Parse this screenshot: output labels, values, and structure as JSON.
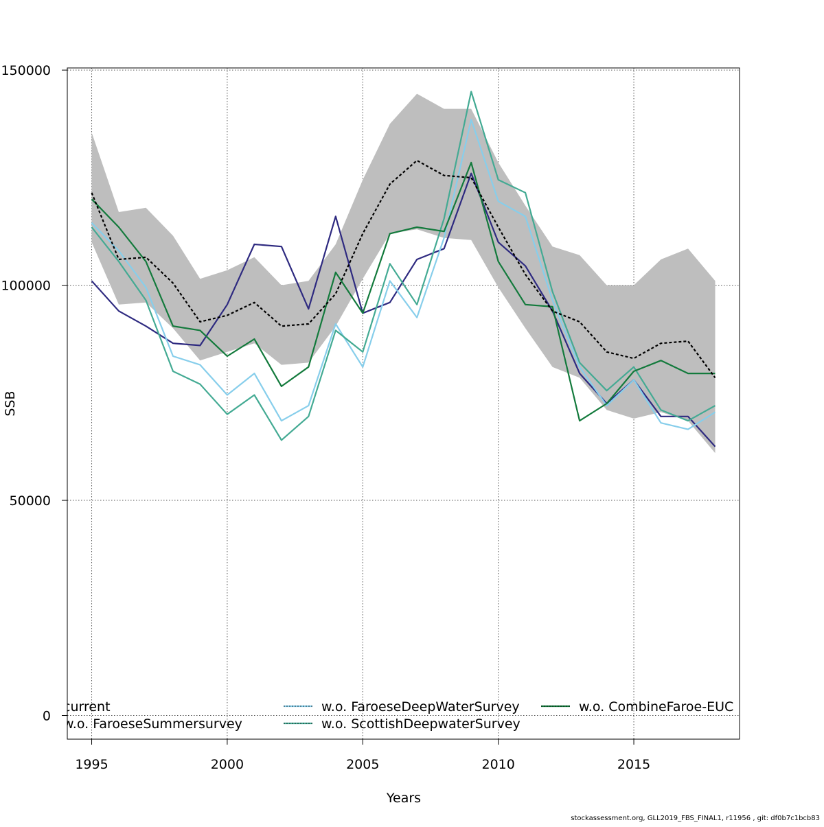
{
  "chart_data": {
    "type": "line",
    "xlabel": "Years",
    "ylabel": "SSB",
    "xlim": [
      1994.1,
      2018.9
    ],
    "ylim": [
      -5500,
      150500
    ],
    "x_ticks": [
      1995,
      2000,
      2005,
      2010,
      2015
    ],
    "y_ticks": [
      0,
      50000,
      100000,
      150000
    ],
    "grid": true,
    "legend_position": "bottom",
    "x": [
      1995,
      1996,
      1997,
      1998,
      1999,
      2000,
      2001,
      2002,
      2003,
      2004,
      2005,
      2006,
      2007,
      2008,
      2009,
      2010,
      2011,
      2012,
      2013,
      2014,
      2015,
      2016,
      2017,
      2018
    ],
    "confidence_band": {
      "upper": [
        135500,
        117000,
        118000,
        111500,
        101500,
        103500,
        106500,
        100000,
        101000,
        109500,
        124500,
        137500,
        144500,
        141000,
        141000,
        128500,
        118500,
        109000,
        107000,
        100000,
        100000,
        106000,
        108500,
        101000
      ],
      "lower": [
        110000,
        95500,
        96000,
        90000,
        82500,
        84500,
        86500,
        81500,
        82000,
        90500,
        101500,
        112000,
        113000,
        111000,
        110500,
        99500,
        90000,
        81000,
        78500,
        71000,
        69000,
        70500,
        68500,
        61000
      ]
    },
    "series": [
      {
        "name": "current",
        "color": "#000000",
        "dashed": true,
        "values": [
          121500,
          106000,
          106500,
          100500,
          91500,
          93000,
          96000,
          90500,
          91000,
          98000,
          112000,
          123500,
          129000,
          125500,
          125000,
          113500,
          102500,
          94000,
          91500,
          84500,
          83000,
          86500,
          87000,
          78500
        ]
      },
      {
        "name": "w.o. FaroeseSummersurvey",
        "color": "#2e2a80",
        "values": [
          101000,
          94000,
          90500,
          86500,
          86000,
          95500,
          109500,
          109000,
          94500,
          116000,
          93500,
          96000,
          106000,
          108500,
          126000,
          110000,
          104500,
          94000,
          79500,
          72500,
          78000,
          69500,
          69500,
          62500
        ]
      },
      {
        "name": "w.o. FaroeseDeepWaterSurvey",
        "color": "#87ceeb",
        "values": [
          114500,
          108000,
          99500,
          83500,
          81500,
          74500,
          79500,
          68500,
          72000,
          91000,
          81000,
          101000,
          92500,
          111000,
          138500,
          119500,
          116000,
          96500,
          81000,
          72000,
          78000,
          68000,
          66500,
          70500
        ]
      },
      {
        "name": "w.o. ScottishDeepwaterSurvey",
        "color": "#43aa93",
        "values": [
          113500,
          105500,
          96500,
          80000,
          77000,
          70000,
          74500,
          64000,
          69500,
          89500,
          84500,
          105000,
          95500,
          115500,
          145000,
          124500,
          121500,
          98500,
          82000,
          75500,
          81000,
          71000,
          68500,
          72000
        ]
      },
      {
        "name": "w.o. CombineFaroe-EUC",
        "color": "#137a3c",
        "values": [
          120000,
          113500,
          105500,
          90500,
          89500,
          83500,
          87500,
          76500,
          81000,
          103000,
          93500,
          112000,
          113500,
          112500,
          128500,
          105500,
          95500,
          95000,
          68500,
          72500,
          80000,
          82500,
          79500,
          79500
        ]
      }
    ],
    "legend": {
      "col1": [
        "current",
        "w.o. FaroeseSummersurvey"
      ],
      "col2": [
        "w.o. FaroeseDeepWaterSurvey",
        "w.o. ScottishDeepwaterSurvey"
      ],
      "col3": [
        "w.o. CombineFaroe-EUC"
      ]
    }
  },
  "footer": "stockassessment.org, GLL2019_FBS_FINAL1, r11956 , git: df0b7c1bcb83"
}
